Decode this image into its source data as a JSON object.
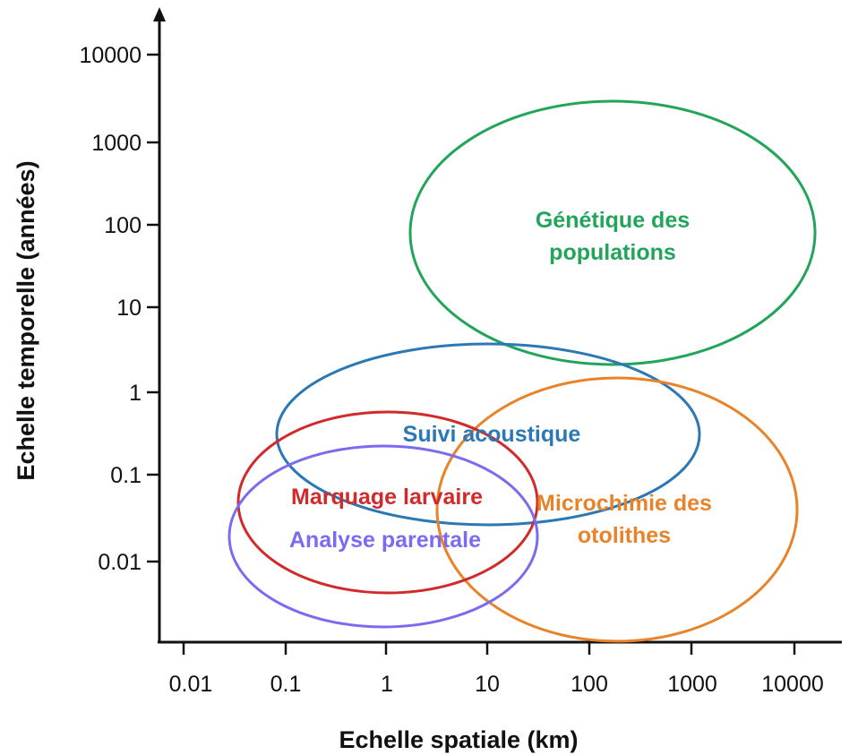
{
  "diagram": {
    "x_axis": {
      "title": "Echelle spatiale (km)",
      "scale": "log",
      "ticks": [
        "0.01",
        "0.1",
        "1",
        "10",
        "100",
        "1000",
        "10000"
      ]
    },
    "y_axis": {
      "title": "Echelle temporelle (années)",
      "scale": "log",
      "ticks": [
        "0.01",
        "0.1",
        "1",
        "10",
        "100",
        "1000",
        "10000"
      ]
    },
    "methods": [
      {
        "id": "genetique",
        "label_lines": [
          "Génétique des",
          "populations"
        ],
        "color": "#22a55b",
        "x_range_km": [
          2.5,
          10000
        ],
        "y_range_years": [
          0.5,
          6000
        ]
      },
      {
        "id": "suivi-acoustique",
        "label_lines": [
          "Suivi acoustique"
        ],
        "color": "#2b78b5",
        "x_range_km": [
          0.08,
          1000
        ],
        "y_range_years": [
          0.008,
          4
        ]
      },
      {
        "id": "microchimie",
        "label_lines": [
          "Microchimie des",
          "otolithes"
        ],
        "color": "#e8832a",
        "x_range_km": [
          4,
          4000
        ],
        "y_range_years": [
          0.0008,
          1.5
        ]
      },
      {
        "id": "marquage-larvaire",
        "label_lines": [
          "Marquage larvaire"
        ],
        "color": "#d12a2a",
        "x_range_km": [
          0.03,
          30
        ],
        "y_range_years": [
          0.004,
          0.6
        ]
      },
      {
        "id": "analyse-parentale",
        "label_lines": [
          "Analyse parentale"
        ],
        "color": "#7a6cf0",
        "x_range_km": [
          0.025,
          30
        ],
        "y_range_years": [
          0.0017,
          0.25
        ]
      }
    ]
  }
}
